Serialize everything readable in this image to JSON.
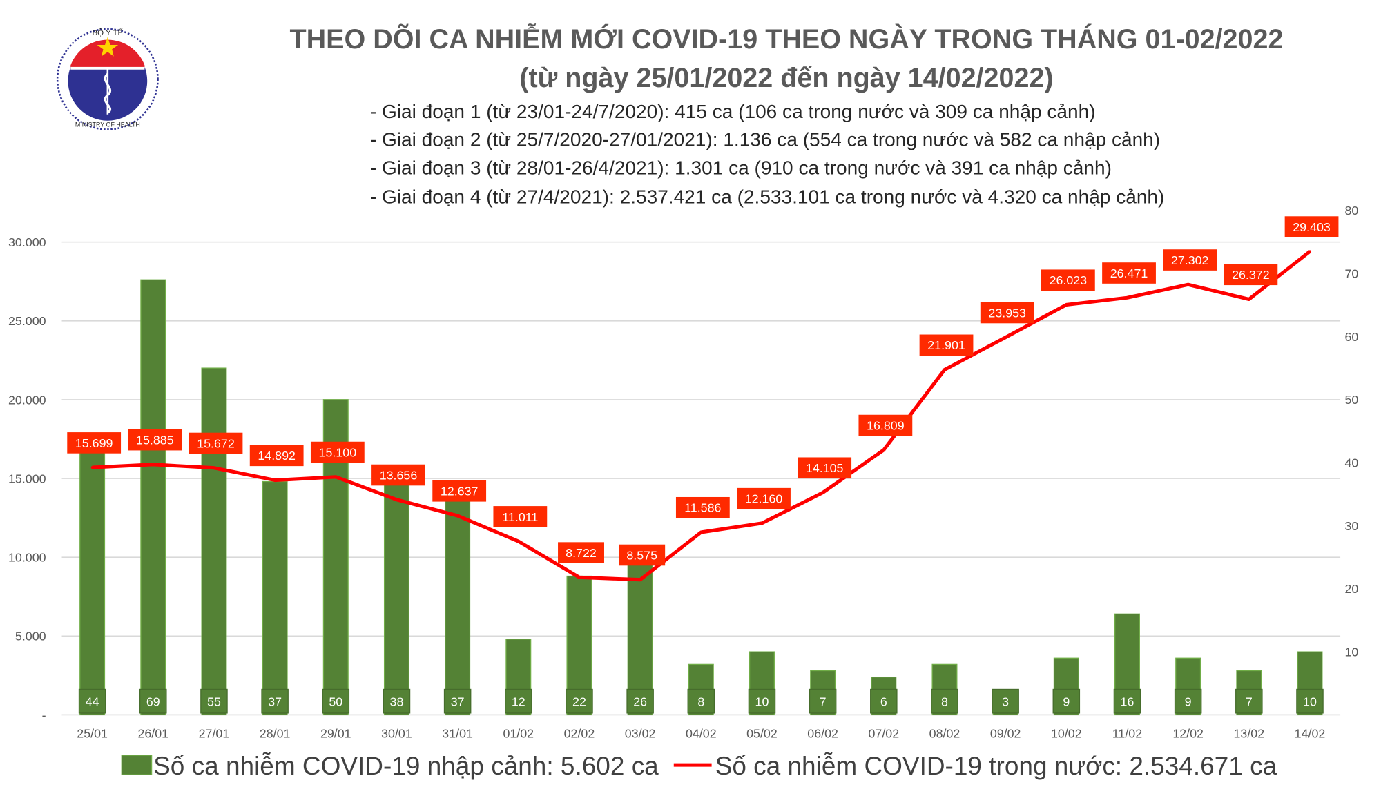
{
  "logo": {
    "top_text": "BỘ Y TẾ",
    "bottom_text": "MINISTRY OF HEALTH"
  },
  "header": {
    "title": "THEO DÕI CA NHIỄM MỚI COVID-19 THEO NGÀY TRONG THÁNG 01-02/2022",
    "subtitle": "(từ ngày 25/01/2022 đến ngày 14/02/2022)",
    "phases": [
      "- Giai đoạn 1 (từ 23/01-24/7/2020): 415 ca (106 ca trong nước và 309 ca nhập cảnh)",
      "- Giai đoạn 2 (từ 25/7/2020-27/01/2021): 1.136 ca (554 ca trong nước và 582 ca nhập cảnh)",
      "- Giai đoạn 3 (từ 28/01-26/4/2021): 1.301 ca (910 ca trong nước và 391 ca nhập cảnh)",
      "- Giai đoạn 4 (từ 27/4/2021): 2.537.421 ca (2.533.101 ca trong nước và 4.320 ca nhập cảnh)"
    ]
  },
  "chart_data": {
    "type": "bar+line",
    "categories": [
      "25/01",
      "26/01",
      "27/01",
      "28/01",
      "29/01",
      "30/01",
      "31/01",
      "01/02",
      "02/02",
      "03/02",
      "04/02",
      "05/02",
      "06/02",
      "07/02",
      "08/02",
      "09/02",
      "10/02",
      "11/02",
      "12/02",
      "13/02",
      "14/02"
    ],
    "series": [
      {
        "name": "Số ca nhiễm COVID-19 nhập cảnh: 5.602 ca",
        "type": "bar",
        "axis": "right",
        "color": "#548235",
        "values": [
          44,
          69,
          55,
          37,
          50,
          38,
          37,
          12,
          22,
          26,
          8,
          10,
          7,
          6,
          8,
          3,
          9,
          16,
          9,
          7,
          10
        ],
        "labels": [
          "44",
          "69",
          "55",
          "37",
          "50",
          "38",
          "37",
          "12",
          "22",
          "26",
          "8",
          "10",
          "7",
          "6",
          "8",
          "3",
          "9",
          "16",
          "9",
          "7",
          "10"
        ]
      },
      {
        "name": "Số ca nhiễm COVID-19 trong nước: 2.534.671 ca",
        "type": "line",
        "axis": "left",
        "color": "#FF0000",
        "values": [
          15699,
          15885,
          15672,
          14892,
          15100,
          13656,
          12637,
          11011,
          8722,
          8575,
          11586,
          12160,
          14105,
          16809,
          21901,
          23953,
          26023,
          26471,
          27302,
          26372,
          29403
        ],
        "labels": [
          "15.699",
          "15.885",
          "15.672",
          "14.892",
          "15.100",
          "13.656",
          "12.637",
          "11.011",
          "8.722",
          "8.575",
          "11.586",
          "12.160",
          "14.105",
          "16.809",
          "21.901",
          "23.953",
          "26.023",
          "26.471",
          "27.302",
          "26.372",
          "29.403"
        ]
      }
    ],
    "left_axis": {
      "range": [
        0,
        30000
      ],
      "ticks": [
        "-",
        "5.000",
        "10.000",
        "15.000",
        "20.000",
        "25.000",
        "30.000"
      ]
    },
    "right_axis": {
      "range": [
        0,
        80
      ],
      "ticks": [
        "",
        "10",
        "20",
        "30",
        "40",
        "50",
        "60",
        "70",
        "80"
      ]
    },
    "grid": true,
    "legend": "bottom",
    "label_box_color": "#FF2A00"
  }
}
